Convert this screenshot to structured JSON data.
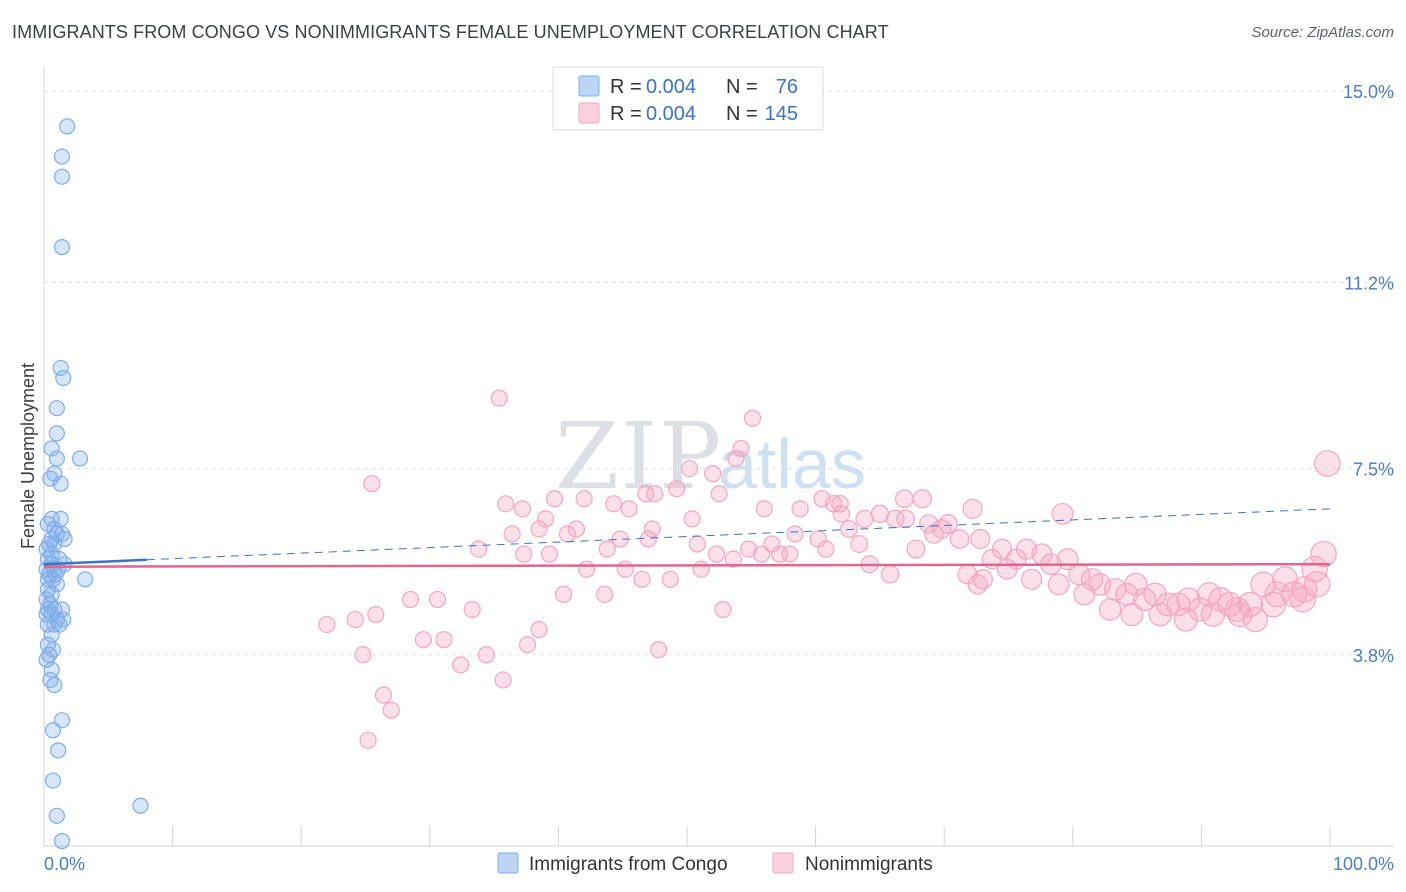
{
  "chart_data": {
    "type": "scatter",
    "title": "IMMIGRANTS FROM CONGO VS NONIMMIGRANTS FEMALE UNEMPLOYMENT CORRELATION CHART",
    "source": "Source: ZipAtlas.com",
    "ylabel": "Female Unemployment",
    "xlim": [
      0,
      100
    ],
    "ylim": [
      0,
      15.5
    ],
    "y_ticks": [
      {
        "value": 3.8,
        "label": "3.8%"
      },
      {
        "value": 7.5,
        "label": "7.5%"
      },
      {
        "value": 11.2,
        "label": "11.2%"
      },
      {
        "value": 15.0,
        "label": "15.0%"
      }
    ],
    "x_tick_labels": {
      "min": "0.0%",
      "max": "100.0%"
    },
    "watermark": {
      "a": "ZIP",
      "b": "atlas"
    },
    "stats": [
      {
        "r_label": "R = ",
        "r": "0.004",
        "n_label": "N = ",
        "n": "76"
      },
      {
        "r_label": "R = ",
        "r": "0.004",
        "n_label": "N = ",
        "n": "145"
      }
    ],
    "colors": {
      "congo": "#7faee8",
      "congo_line": "#3b73c8",
      "nonimm": "#f4a6c0",
      "nonimm_line": "#e0668f"
    },
    "series": [
      {
        "name": "Immigrants from Congo",
        "trend": {
          "y0": 5.6,
          "y1": 6.7,
          "solid_to_x": 8
        },
        "points": [
          [
            1.8,
            14.3
          ],
          [
            1.4,
            13.7
          ],
          [
            1.4,
            13.3
          ],
          [
            1.4,
            11.9
          ],
          [
            1.3,
            9.5
          ],
          [
            1.5,
            9.3
          ],
          [
            1.0,
            8.7
          ],
          [
            1.0,
            8.2
          ],
          [
            0.6,
            7.9
          ],
          [
            2.8,
            7.7
          ],
          [
            1.0,
            7.7
          ],
          [
            0.8,
            7.4
          ],
          [
            0.5,
            7.3
          ],
          [
            1.3,
            7.2
          ],
          [
            0.6,
            6.5
          ],
          [
            1.3,
            6.5
          ],
          [
            0.3,
            6.4
          ],
          [
            0.8,
            6.3
          ],
          [
            1.0,
            6.2
          ],
          [
            1.4,
            6.2
          ],
          [
            0.6,
            6.1
          ],
          [
            1.6,
            6.1
          ],
          [
            0.4,
            6.0
          ],
          [
            0.8,
            6.0
          ],
          [
            0.2,
            5.9
          ],
          [
            0.6,
            5.8
          ],
          [
            0.3,
            5.7
          ],
          [
            1.2,
            5.7
          ],
          [
            0.6,
            5.6
          ],
          [
            1.6,
            5.6
          ],
          [
            0.2,
            5.5
          ],
          [
            0.8,
            5.5
          ],
          [
            1.1,
            5.5
          ],
          [
            0.4,
            5.4
          ],
          [
            0.9,
            5.4
          ],
          [
            0.3,
            5.3
          ],
          [
            0.7,
            5.3
          ],
          [
            3.2,
            5.3
          ],
          [
            1.0,
            5.2
          ],
          [
            0.3,
            5.1
          ],
          [
            0.6,
            5.0
          ],
          [
            0.2,
            4.9
          ],
          [
            0.5,
            4.8
          ],
          [
            0.3,
            4.7
          ],
          [
            0.8,
            4.7
          ],
          [
            1.4,
            4.7
          ],
          [
            0.2,
            4.6
          ],
          [
            0.6,
            4.6
          ],
          [
            1.0,
            4.5
          ],
          [
            1.5,
            4.5
          ],
          [
            0.3,
            4.4
          ],
          [
            0.8,
            4.4
          ],
          [
            1.2,
            4.4
          ],
          [
            0.6,
            4.2
          ],
          [
            0.3,
            4.0
          ],
          [
            0.7,
            3.9
          ],
          [
            0.4,
            3.8
          ],
          [
            0.2,
            3.7
          ],
          [
            0.6,
            3.5
          ],
          [
            0.5,
            3.3
          ],
          [
            0.8,
            3.2
          ],
          [
            1.4,
            2.5
          ],
          [
            0.7,
            2.3
          ],
          [
            1.1,
            1.9
          ],
          [
            0.7,
            1.3
          ],
          [
            7.5,
            0.8
          ],
          [
            1.0,
            0.6
          ],
          [
            1.4,
            0.1
          ]
        ]
      },
      {
        "name": "Nonimmigrants",
        "trend": {
          "y0": 5.55,
          "y1": 5.6
        },
        "points": [
          [
            35.4,
            8.9
          ],
          [
            25.5,
            7.2
          ],
          [
            55.1,
            8.5
          ],
          [
            54.2,
            7.9
          ],
          [
            53.8,
            7.7
          ],
          [
            52.0,
            7.4
          ],
          [
            50.2,
            7.5
          ],
          [
            52.5,
            7.0
          ],
          [
            49.2,
            7.1
          ],
          [
            47.5,
            7.0
          ],
          [
            46.8,
            7.0
          ],
          [
            44.3,
            6.8
          ],
          [
            42.0,
            6.9
          ],
          [
            39.7,
            6.9
          ],
          [
            37.2,
            6.7
          ],
          [
            35.9,
            6.8
          ],
          [
            39.0,
            6.5
          ],
          [
            38.5,
            6.3
          ],
          [
            45.5,
            6.7
          ],
          [
            50.4,
            6.5
          ],
          [
            47.3,
            6.3
          ],
          [
            41.4,
            6.3
          ],
          [
            40.7,
            6.2
          ],
          [
            36.4,
            6.2
          ],
          [
            37.3,
            5.8
          ],
          [
            39.3,
            5.8
          ],
          [
            43.8,
            5.9
          ],
          [
            44.8,
            6.1
          ],
          [
            47.0,
            6.1
          ],
          [
            50.8,
            6.0
          ],
          [
            52.3,
            5.8
          ],
          [
            53.6,
            5.7
          ],
          [
            55.8,
            5.8
          ],
          [
            57.2,
            5.8
          ],
          [
            56.6,
            6.0
          ],
          [
            58.4,
            6.2
          ],
          [
            58.8,
            6.7
          ],
          [
            60.5,
            6.9
          ],
          [
            61.4,
            6.8
          ],
          [
            62.6,
            6.3
          ],
          [
            63.4,
            6.0
          ],
          [
            65.0,
            6.6
          ],
          [
            66.2,
            6.5
          ],
          [
            67.0,
            6.5
          ],
          [
            68.8,
            6.4
          ],
          [
            69.2,
            6.2
          ],
          [
            70.3,
            6.4
          ],
          [
            71.2,
            6.1
          ],
          [
            72.2,
            6.7
          ],
          [
            72.8,
            6.1
          ],
          [
            73.7,
            5.7
          ],
          [
            74.5,
            5.9
          ],
          [
            75.6,
            5.7
          ],
          [
            76.4,
            5.9
          ],
          [
            77.6,
            5.8
          ],
          [
            78.3,
            5.6
          ],
          [
            79.2,
            6.6
          ],
          [
            79.6,
            5.7
          ],
          [
            80.5,
            5.4
          ],
          [
            81.5,
            5.3
          ],
          [
            82.1,
            5.2
          ],
          [
            83.3,
            5.1
          ],
          [
            84.2,
            5.0
          ],
          [
            84.9,
            5.2
          ],
          [
            85.6,
            4.9
          ],
          [
            86.4,
            5.0
          ],
          [
            87.4,
            4.8
          ],
          [
            88.2,
            4.8
          ],
          [
            89.0,
            4.9
          ],
          [
            89.9,
            4.7
          ],
          [
            90.6,
            5.0
          ],
          [
            91.5,
            4.9
          ],
          [
            92.2,
            4.8
          ],
          [
            93.0,
            4.6
          ],
          [
            93.8,
            4.8
          ],
          [
            94.8,
            5.2
          ],
          [
            95.6,
            4.8
          ],
          [
            96.5,
            5.3
          ],
          [
            97.2,
            5.0
          ],
          [
            98.0,
            5.1
          ],
          [
            98.8,
            5.5
          ],
          [
            99.5,
            5.8
          ],
          [
            99.8,
            7.6
          ],
          [
            22.0,
            4.4
          ],
          [
            24.2,
            4.5
          ],
          [
            25.8,
            4.6
          ],
          [
            24.8,
            3.8
          ],
          [
            28.5,
            4.9
          ],
          [
            30.6,
            4.9
          ],
          [
            29.5,
            4.1
          ],
          [
            31.1,
            4.1
          ],
          [
            33.3,
            4.7
          ],
          [
            33.8,
            5.9
          ],
          [
            32.4,
            3.6
          ],
          [
            34.4,
            3.8
          ],
          [
            35.7,
            3.3
          ],
          [
            37.6,
            4.0
          ],
          [
            38.5,
            4.3
          ],
          [
            26.4,
            3.0
          ],
          [
            27.0,
            2.7
          ],
          [
            25.2,
            2.1
          ],
          [
            42.2,
            5.5
          ],
          [
            45.2,
            5.5
          ],
          [
            46.5,
            5.3
          ],
          [
            48.7,
            5.3
          ],
          [
            51.1,
            5.5
          ],
          [
            40.4,
            5.0
          ],
          [
            43.6,
            5.0
          ],
          [
            47.8,
            3.9
          ],
          [
            52.8,
            4.7
          ],
          [
            54.8,
            5.9
          ],
          [
            56.0,
            6.7
          ],
          [
            58.0,
            5.8
          ],
          [
            60.8,
            5.9
          ],
          [
            62.0,
            6.6
          ],
          [
            64.2,
            5.6
          ],
          [
            65.8,
            5.4
          ],
          [
            67.8,
            5.9
          ],
          [
            69.8,
            6.3
          ],
          [
            71.8,
            5.4
          ],
          [
            73.0,
            5.3
          ],
          [
            74.9,
            5.5
          ],
          [
            76.8,
            5.3
          ],
          [
            78.9,
            5.2
          ],
          [
            80.9,
            5.0
          ],
          [
            82.9,
            4.7
          ],
          [
            84.6,
            4.6
          ],
          [
            86.8,
            4.6
          ],
          [
            88.8,
            4.5
          ],
          [
            90.9,
            4.6
          ],
          [
            92.8,
            4.7
          ],
          [
            94.2,
            4.5
          ],
          [
            95.9,
            5.0
          ],
          [
            97.9,
            4.9
          ],
          [
            99.0,
            5.2
          ],
          [
            72.6,
            5.2
          ],
          [
            60.2,
            6.1
          ],
          [
            61.9,
            6.8
          ],
          [
            63.8,
            6.5
          ],
          [
            66.9,
            6.9
          ],
          [
            68.3,
            6.9
          ]
        ]
      }
    ]
  }
}
